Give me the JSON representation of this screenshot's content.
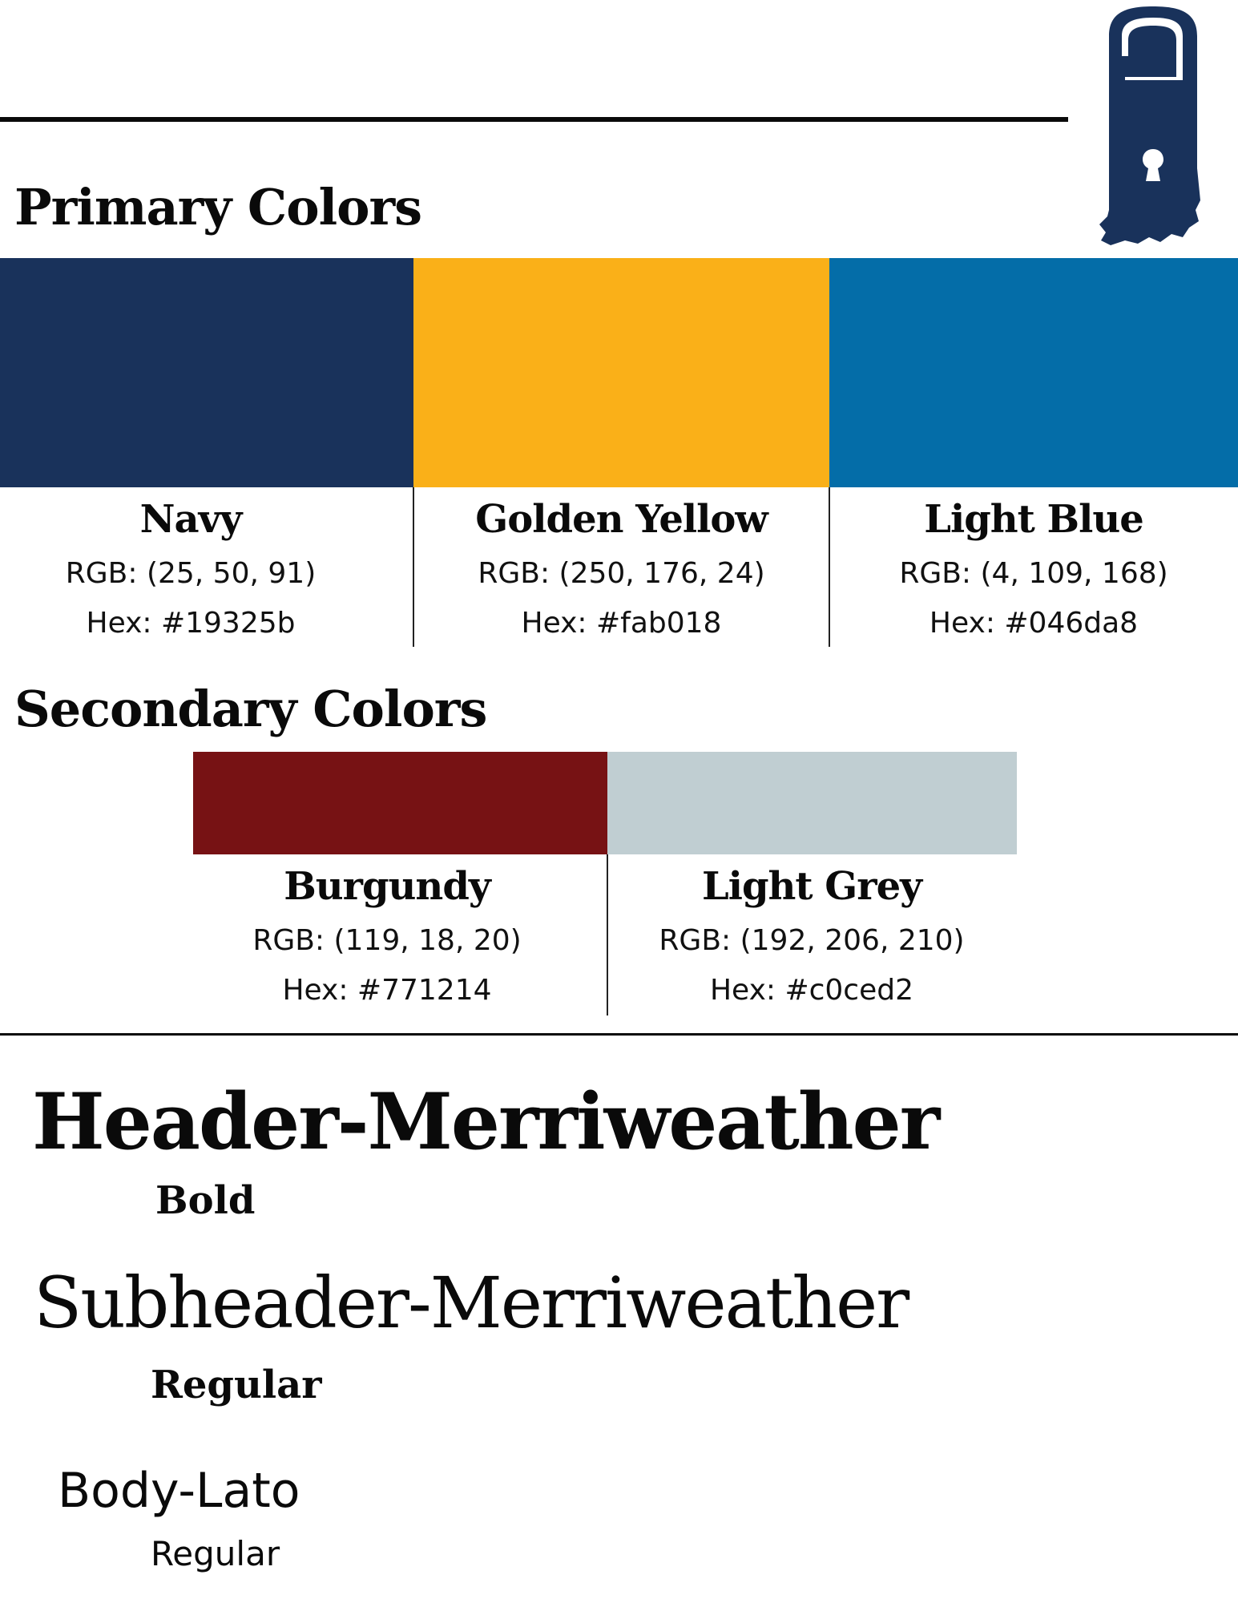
{
  "brand": {
    "logo_icon": "indiana-door-hanger-keyhole-icon",
    "logo_color": "#19325b"
  },
  "primary": {
    "title": "Primary Colors",
    "colors": [
      {
        "name": "Navy",
        "rgb": "RGB: (25, 50, 91)",
        "hex": "Hex: #19325b",
        "swatch": "#19325b"
      },
      {
        "name": "Golden Yellow",
        "rgb": "RGB: (250, 176, 24)",
        "hex": "Hex: #fab018",
        "swatch": "#fab018"
      },
      {
        "name": "Light Blue",
        "rgb": "RGB: (4, 109, 168)",
        "hex": "Hex: #046da8",
        "swatch": "#046da8"
      }
    ]
  },
  "secondary": {
    "title": "Secondary Colors",
    "colors": [
      {
        "name": "Burgundy",
        "rgb": "RGB: (119, 18, 20)",
        "hex": "Hex: #771214",
        "swatch": "#771214"
      },
      {
        "name": "Light Grey",
        "rgb": "RGB: (192, 206, 210)",
        "hex": "Hex: #c0ced2",
        "swatch": "#c0ced2"
      }
    ]
  },
  "typography": {
    "header": {
      "sample": "Header-Merriweather",
      "weight": "Bold"
    },
    "subheader": {
      "sample": "Subheader-Merriweather",
      "weight": "Regular"
    },
    "body": {
      "sample": "Body-Lato",
      "weight": "Regular"
    }
  }
}
